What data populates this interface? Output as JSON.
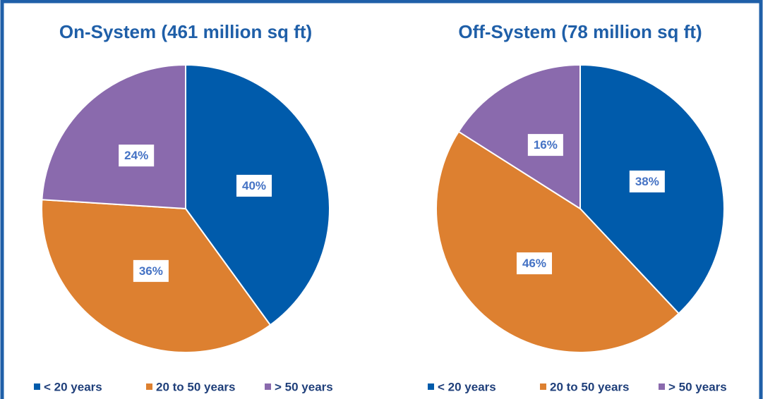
{
  "chart_data": [
    {
      "type": "pie",
      "title": "On-System (461 million sq ft)",
      "categories": [
        "< 20 years",
        "20 to 50 years",
        "> 50 years"
      ],
      "values": [
        40,
        36,
        24
      ],
      "value_labels": [
        "40%",
        "36%",
        "24%"
      ],
      "colors": [
        "#005bab",
        "#dd8030",
        "#8a6aad"
      ]
    },
    {
      "type": "pie",
      "title": "Off-System (78 million sq ft)",
      "categories": [
        "< 20 years",
        "20 to 50 years",
        "> 50 years"
      ],
      "values": [
        38,
        46,
        16
      ],
      "value_labels": [
        "38%",
        "46%",
        "16%"
      ],
      "colors": [
        "#005bab",
        "#dd8030",
        "#8a6aad"
      ]
    }
  ]
}
